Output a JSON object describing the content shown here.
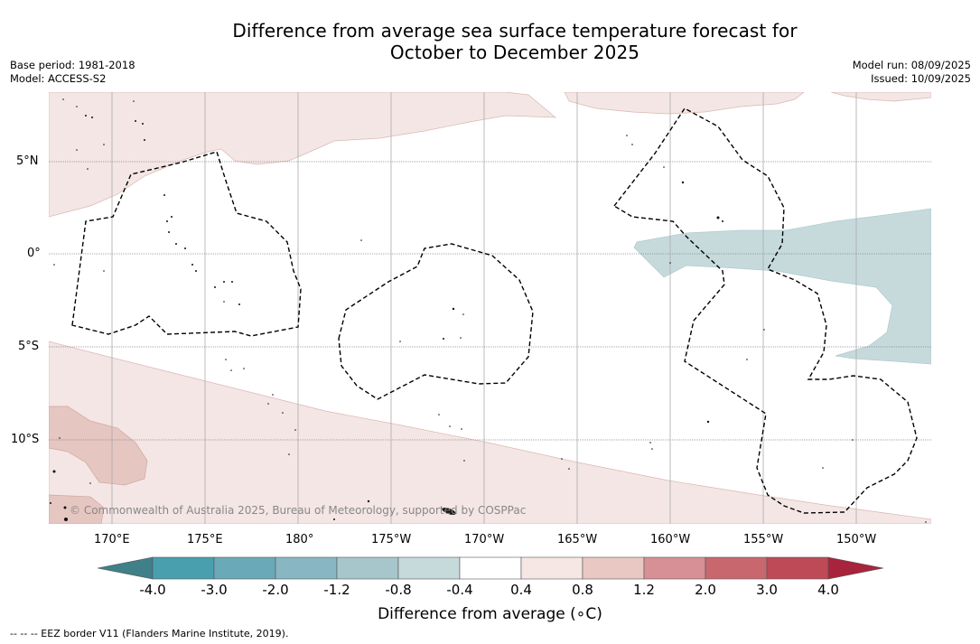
{
  "title_line1": "Difference from average sea surface temperature forecast for",
  "title_line2": "October to December 2025",
  "base_period": "Base period: 1981-2018",
  "model": "Model: ACCESS-S2",
  "model_run": "Model run: 08/09/2025",
  "issued": "Issued: 10/09/2025",
  "credit": "© Commonwealth of Australia 2025, Bureau of Meteorology, supported by COSPPac",
  "lat_labels": [
    "5°N",
    "0°",
    "5°S",
    "10°S"
  ],
  "lon_labels": [
    "170°E",
    "175°E",
    "180°",
    "175°W",
    "170°W",
    "165°W",
    "160°W",
    "155°W",
    "150°W"
  ],
  "colorbar": {
    "ticks": [
      "-4.0",
      "-3.0",
      "-2.0",
      "-1.2",
      "-0.8",
      "-0.4",
      "0.4",
      "0.8",
      "1.2",
      "2.0",
      "3.0",
      "4.0"
    ],
    "colors": [
      "#4a9fae",
      "#6aa9b8",
      "#88b6c2",
      "#a7c6cc",
      "#c6dadc",
      "#ffffff",
      "#f6e7e5",
      "#e9c8c3",
      "#d69096",
      "#c9676f",
      "#be4a58"
    ],
    "under_color": "#3f8089",
    "over_color": "#a8243c",
    "label": "Difference from average (∘C)"
  },
  "footer": "--  --  -- EEZ border V11 (Flanders Marine Institute, 2019)."
}
